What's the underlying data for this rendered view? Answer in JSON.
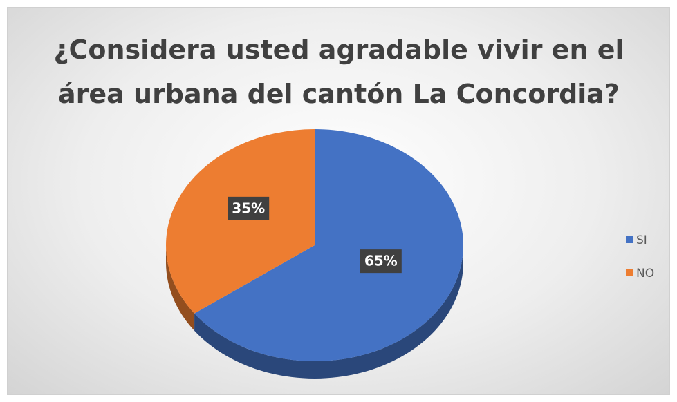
{
  "chart_data": {
    "type": "pie",
    "title": "¿Considera usted agradable vivir en el área urbana del cantón La Concordia?",
    "categories": [
      "SI",
      "NO"
    ],
    "values": [
      65,
      35
    ],
    "value_labels": [
      "65%",
      "35%"
    ],
    "colors": [
      "#4472c4",
      "#ed7d31"
    ],
    "legend": "right"
  }
}
